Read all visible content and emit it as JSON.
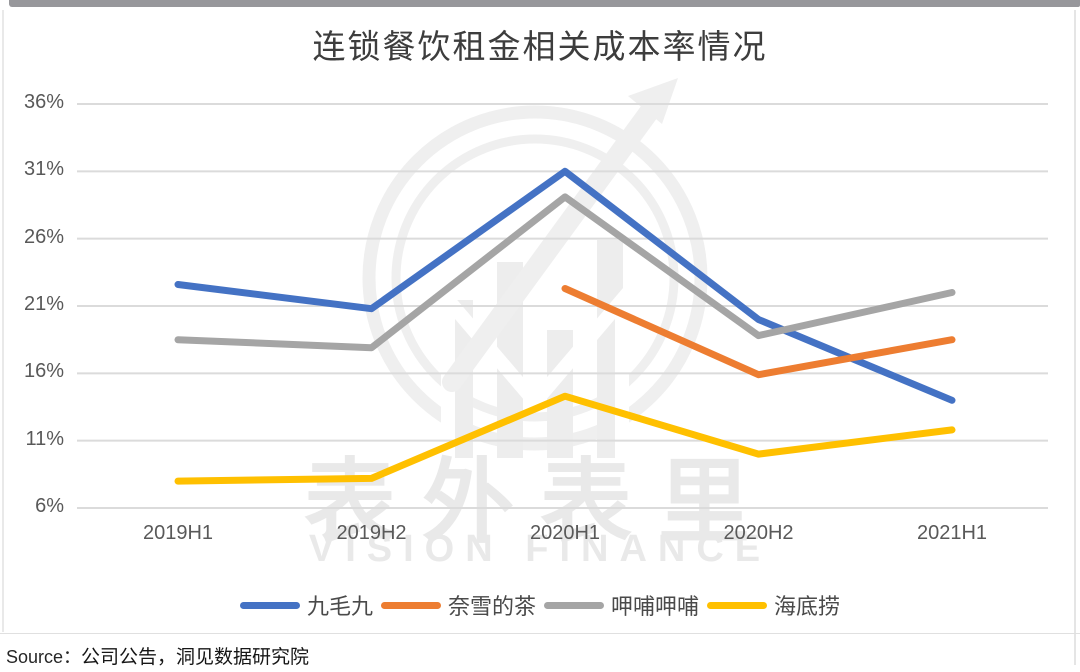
{
  "page": {
    "source_label": "Source：",
    "source_text": "公司公告，洞见数据研究院"
  },
  "watermark": {
    "cn": "表外表里",
    "en": "VISION FINANCE"
  },
  "chart_data": {
    "type": "line",
    "title": "连锁餐饮租金相关成本率情况",
    "categories": [
      "2019H1",
      "2019H2",
      "2020H1",
      "2020H2",
      "2021H1"
    ],
    "xlabel": "",
    "ylabel": "",
    "unit": "%",
    "ylim": [
      6,
      36
    ],
    "y_tick_values": [
      36,
      31,
      26,
      21,
      16,
      11,
      6
    ],
    "y_ticks": [
      "36%",
      "31%",
      "26%",
      "21%",
      "16%",
      "11%",
      "6%"
    ],
    "grid": true,
    "legend_position": "bottom",
    "series": [
      {
        "name": "九毛九",
        "color": "#4472C4",
        "values": [
          22.6,
          20.8,
          31.0,
          20.0,
          14.0
        ]
      },
      {
        "name": "奈雪的茶",
        "color": "#ED7D31",
        "values": [
          null,
          null,
          22.3,
          15.9,
          18.5
        ]
      },
      {
        "name": "呷哺呷哺",
        "color": "#A5A5A5",
        "values": [
          18.5,
          17.9,
          29.1,
          18.8,
          22.0
        ]
      },
      {
        "name": "海底捞",
        "color": "#FFC000",
        "values": [
          8.0,
          8.2,
          14.3,
          10.0,
          11.8
        ]
      }
    ]
  }
}
